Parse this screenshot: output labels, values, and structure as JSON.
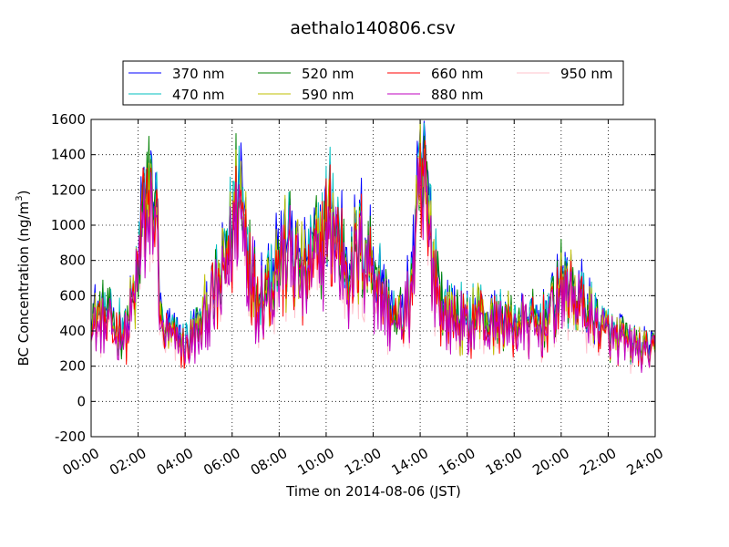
{
  "chart_data": {
    "type": "line",
    "title": "aethalo140806.csv",
    "xlabel": "Time on 2014-08-06 (JST)",
    "ylabel_main": "BC Concentration (ng/m",
    "ylabel_sup": "3",
    "ylabel_end": ")",
    "xlim": [
      0,
      24
    ],
    "ylim": [
      -200,
      1600
    ],
    "grid": true,
    "legend_position": "top",
    "x_tick_labels": [
      "00:00",
      "02:00",
      "04:00",
      "06:00",
      "08:00",
      "10:00",
      "12:00",
      "14:00",
      "16:00",
      "18:00",
      "20:00",
      "22:00",
      "24:00"
    ],
    "y_tick_labels": [
      "-200",
      "0",
      "200",
      "400",
      "600",
      "800",
      "1000",
      "1200",
      "1400",
      "1600"
    ],
    "series": [
      {
        "name": "370 nm",
        "color": "#0000ff"
      },
      {
        "name": "470 nm",
        "color": "#00bfbf"
      },
      {
        "name": "520 nm",
        "color": "#008000"
      },
      {
        "name": "590 nm",
        "color": "#bfbf00"
      },
      {
        "name": "660 nm",
        "color": "#ff0000"
      },
      {
        "name": "880 nm",
        "color": "#bf00bf"
      },
      {
        "name": "950 nm",
        "color": "#ffc0cb"
      }
    ],
    "x": [
      0.0,
      0.5,
      1.0,
      1.5,
      2.0,
      2.25,
      2.5,
      2.75,
      3.0,
      3.5,
      4.0,
      4.5,
      5.0,
      5.5,
      6.0,
      6.25,
      6.5,
      7.0,
      7.5,
      8.0,
      8.5,
      9.0,
      9.5,
      10.0,
      10.25,
      10.5,
      11.0,
      11.5,
      12.0,
      12.5,
      13.0,
      13.5,
      13.75,
      14.0,
      14.25,
      14.5,
      15.0,
      15.5,
      16.0,
      16.5,
      17.0,
      17.5,
      18.0,
      18.5,
      19.0,
      19.5,
      20.0,
      20.5,
      21.0,
      21.5,
      22.0,
      22.5,
      23.0,
      23.5,
      24.0
    ],
    "base_values": [
      450,
      480,
      420,
      400,
      700,
      1150,
      1050,
      1100,
      400,
      350,
      320,
      400,
      550,
      650,
      1000,
      1150,
      1050,
      600,
      650,
      800,
      850,
      700,
      800,
      950,
      1050,
      900,
      750,
      850,
      750,
      550,
      450,
      550,
      800,
      1250,
      1150,
      850,
      500,
      480,
      430,
      500,
      430,
      450,
      430,
      450,
      420,
      480,
      650,
      600,
      520,
      450,
      380,
      350,
      320,
      300,
      280
    ]
  }
}
